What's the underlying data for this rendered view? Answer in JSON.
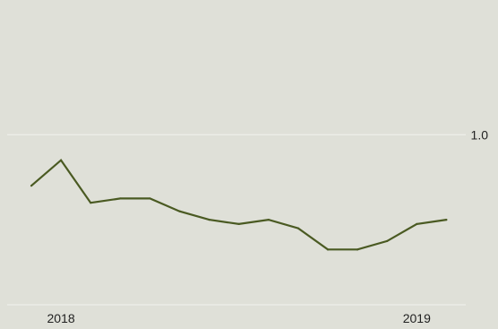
{
  "chart_data": {
    "type": "line",
    "title": "",
    "xlabel": "",
    "ylabel": "",
    "x": [
      "2018-01",
      "2018-02",
      "2018-03",
      "2018-04",
      "2018-05",
      "2018-06",
      "2018-07",
      "2018-08",
      "2018-09",
      "2018-10",
      "2018-11",
      "2018-12",
      "2019-01",
      "2019-02",
      "2019-03"
    ],
    "series": [
      {
        "values": [
          0.88,
          0.94,
          0.84,
          0.85,
          0.85,
          0.82,
          0.8,
          0.79,
          0.8,
          0.78,
          0.73,
          0.73,
          0.75,
          0.79,
          0.8
        ]
      }
    ],
    "ylim": [
      0.6,
      1.3
    ],
    "y_ticks": [
      {
        "value": 1.0,
        "label": "1.0"
      }
    ],
    "x_ticks": [
      {
        "x": "2018-02",
        "label": "2018"
      },
      {
        "x": "2019-02",
        "label": "2019"
      }
    ],
    "grid": true,
    "legend": "none",
    "colors": {
      "line": "#4a5a22",
      "grid": "#f2f2ee",
      "background": "#dfe0d8",
      "text": "#222222"
    }
  }
}
